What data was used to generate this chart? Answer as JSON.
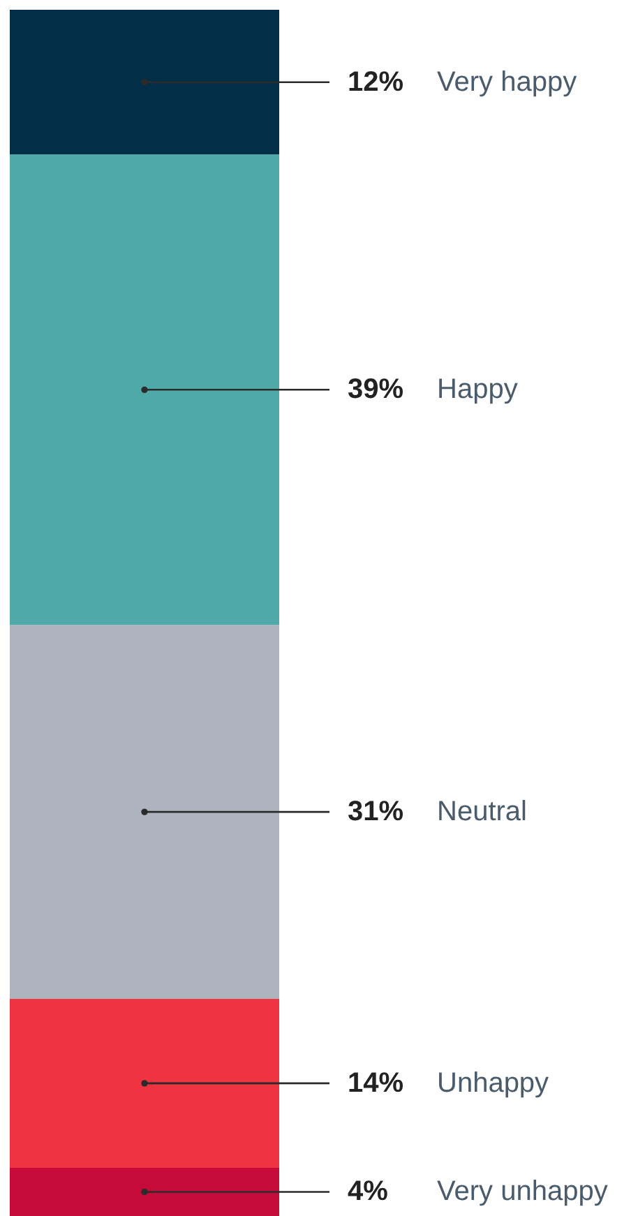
{
  "chart_data": {
    "type": "bar",
    "stacked": true,
    "categories": [
      null
    ],
    "tick_labels": false,
    "series": [
      {
        "name": "Very unhappy",
        "color": "#c60a3a",
        "values": [
          4
        ],
        "value_labels": [
          "4%"
        ]
      },
      {
        "name": "Unhappy",
        "color": "#ef3340",
        "values": [
          14
        ],
        "value_labels": [
          "14%"
        ]
      },
      {
        "name": "Neutral",
        "color": "#adb4bd",
        "values": [
          31
        ],
        "value_labels": [
          "31%"
        ]
      },
      {
        "name": "Happy",
        "color": "#4fa9a9",
        "values": [
          39
        ],
        "value_labels": [
          "39%"
        ]
      },
      {
        "name": "Very happy",
        "color": "#032e47",
        "values": [
          12
        ],
        "value_labels": [
          "12%"
        ]
      }
    ]
  }
}
